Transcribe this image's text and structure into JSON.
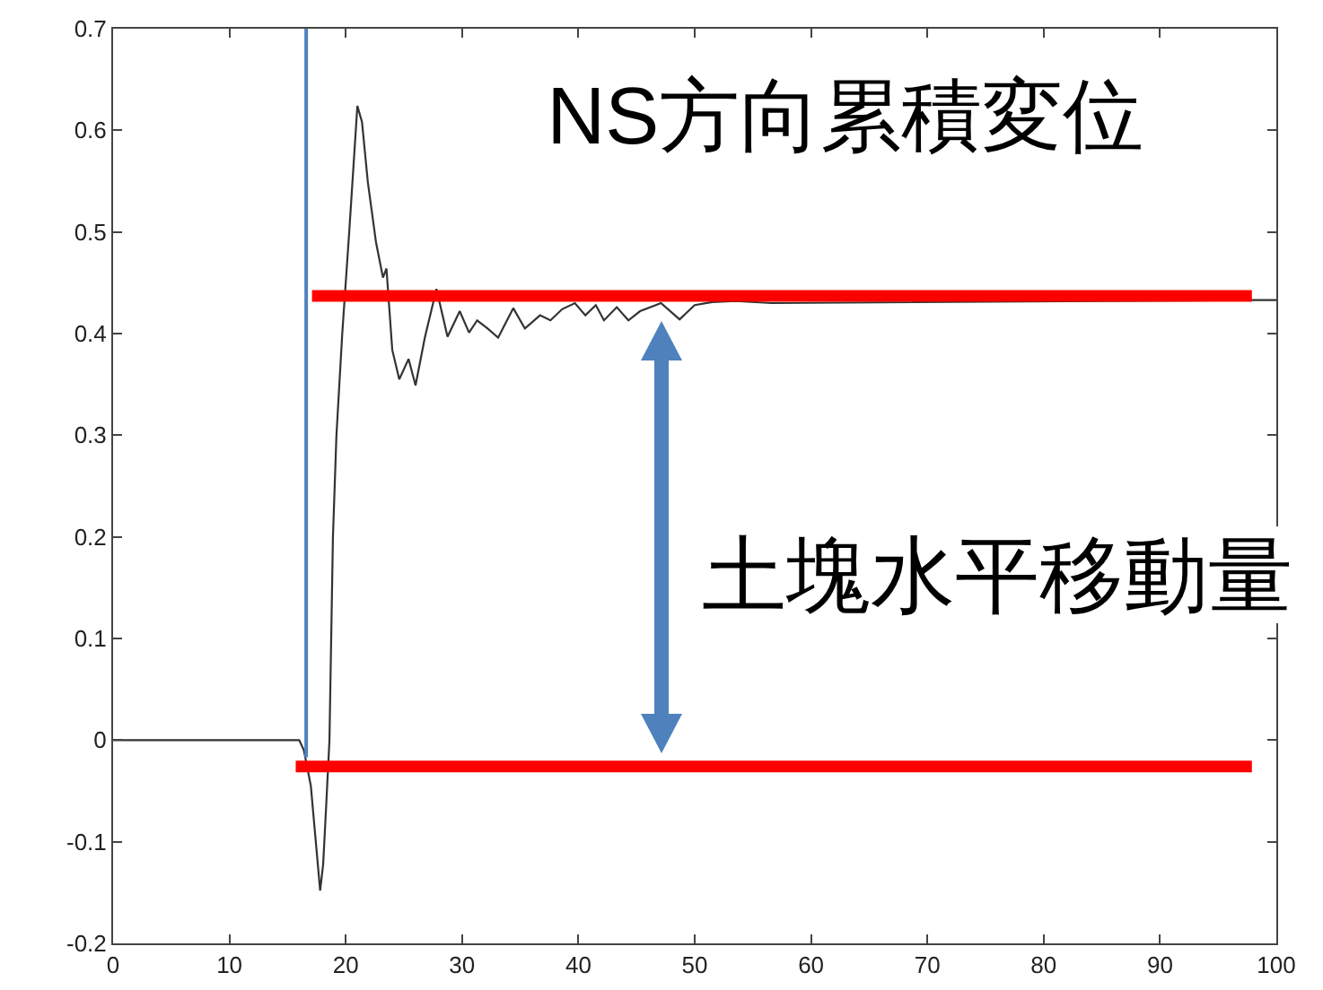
{
  "chart_data": {
    "type": "line",
    "title": "NS方向累積変位",
    "annotations": [
      "土塊水平移動量"
    ],
    "xlim": [
      0,
      100
    ],
    "xticks": [
      0,
      10,
      20,
      30,
      40,
      50,
      60,
      70,
      80,
      90,
      100
    ],
    "ylim": [
      -0.2,
      0.7
    ],
    "yticks": [
      -0.2,
      -0.1,
      0,
      0.1,
      0.2,
      0.3,
      0.4,
      0.5,
      0.6,
      0.7
    ],
    "series": [
      {
        "color": "#333333",
        "x": [
          0,
          16.0,
          16.4,
          17.0,
          17.8,
          18.06,
          18.3,
          18.6,
          18.9,
          19.2,
          19.7,
          20.3,
          21.0,
          21.4,
          21.9,
          22.6,
          23.2,
          23.5,
          24.0,
          24.6,
          25.4,
          26.0,
          26.8,
          27.8,
          28.75,
          29.8,
          30.6,
          31.3,
          32.2,
          33.1,
          34.4,
          35.4,
          36.7,
          37.6,
          38.6,
          39.7,
          40.6,
          41.5,
          42.2,
          43.3,
          44.3,
          45.3,
          47.1,
          48.7,
          50.0,
          51.5,
          53.5,
          56.6,
          98.3,
          100
        ],
        "values": [
          0,
          0,
          -0.01,
          -0.045,
          -0.148,
          -0.122,
          -0.069,
          0,
          0.2,
          0.3,
          0.4,
          0.5,
          0.624,
          0.608,
          0.549,
          0.49,
          0.455,
          0.464,
          0.384,
          0.355,
          0.375,
          0.349,
          0.396,
          0.444,
          0.397,
          0.422,
          0.401,
          0.413,
          0.405,
          0.396,
          0.425,
          0.405,
          0.418,
          0.413,
          0.424,
          0.43,
          0.418,
          0.428,
          0.413,
          0.426,
          0.413,
          0.422,
          0.43,
          0.414,
          0.428,
          0.431,
          0.432,
          0.43,
          0.433,
          0.433
        ]
      },
      {
        "color": "#ff0000",
        "x": [
          17.1,
          97.9
        ],
        "values": [
          0.437,
          0.437
        ]
      },
      {
        "color": "#ff0000",
        "x": [
          15.7,
          97.9
        ],
        "values": [
          -0.026,
          -0.026
        ]
      },
      {
        "color": "#4f81bd",
        "x": [
          16.6,
          16.6
        ],
        "values": [
          -0.017,
          0.7
        ]
      }
    ]
  }
}
